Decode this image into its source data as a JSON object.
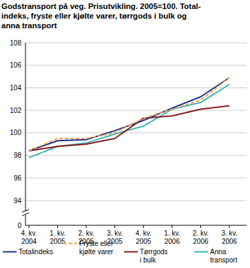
{
  "chart_data": {
    "type": "line",
    "title": [
      "Godstransport på veg. Prisutvikling. 2005=100. Total-",
      "indeks, fryste eller kjølte varer, tørrgods i bulk og",
      "anna transport"
    ],
    "categories": [
      "4. kv. 2004",
      "1. kv. 2005",
      "2. kv. 2005",
      "3. kv. 2005",
      "4. kv. 2005",
      "1. kv. 2006",
      "2. kv. 2006",
      "3. kv. 2006"
    ],
    "series": [
      {
        "name": "Totalindeks",
        "color": "#1c2f8c",
        "line_style": "solid",
        "values": [
          98.4,
          99.3,
          99.4,
          100.2,
          101.1,
          102.2,
          103.2,
          104.9
        ]
      },
      {
        "name": "Fryste eller kjølte varer",
        "color": "#f2a444",
        "line_style": "dashed",
        "values": [
          98.4,
          99.5,
          99.5,
          100.0,
          101.3,
          102.1,
          102.9,
          104.9
        ]
      },
      {
        "name": "Tørrgods i bulk",
        "color": "#8b1a1a",
        "line_style": "solid",
        "values": [
          98.4,
          98.8,
          99.0,
          99.5,
          101.3,
          101.5,
          102.1,
          102.4
        ]
      },
      {
        "name": "Anna transport",
        "color": "#3ab5b5",
        "line_style": "solid",
        "values": [
          97.8,
          98.8,
          99.1,
          99.9,
          100.6,
          102.1,
          102.7,
          104.3
        ]
      }
    ],
    "ylim": [
      91.8,
      108
    ],
    "yticks": [
      94,
      96,
      98,
      100,
      102,
      104,
      106,
      108
    ],
    "annotations": [
      "0"
    ],
    "grid": true,
    "legend": "bottom"
  }
}
